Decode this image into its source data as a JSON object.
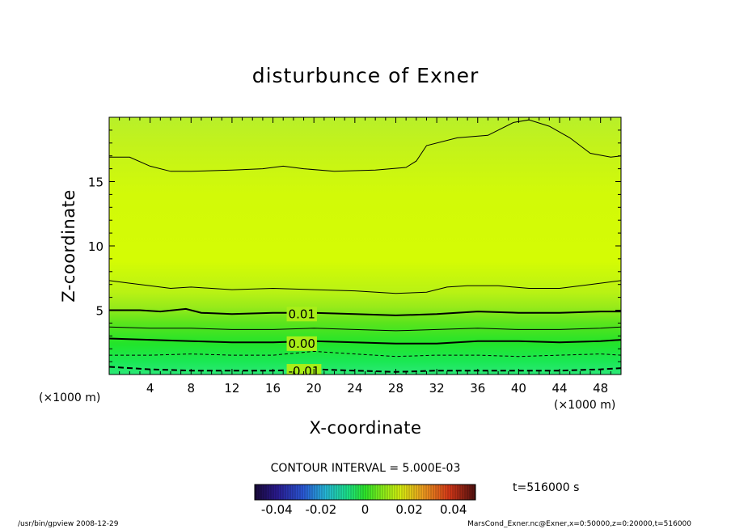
{
  "chart_data": {
    "type": "heatmap",
    "title": "disturbunce of Exner",
    "xlabel": "X-coordinate",
    "ylabel": "Z-coordinate",
    "x_unit": "(×1000 m)",
    "y_unit": "(×1000 m)",
    "xlim": [
      0,
      50
    ],
    "ylim": [
      0,
      20
    ],
    "x_ticks": [
      "4",
      "8",
      "12",
      "16",
      "20",
      "24",
      "28",
      "32",
      "36",
      "40",
      "44",
      "48"
    ],
    "x_tick_values": [
      4,
      8,
      12,
      16,
      20,
      24,
      28,
      32,
      36,
      40,
      44,
      48
    ],
    "y_ticks": [
      "5",
      "10",
      "15"
    ],
    "y_tick_values": [
      5,
      10,
      15
    ],
    "contour_interval_text": "CONTOUR INTERVAL = 5.000E-03",
    "contour_labels": [
      {
        "text": "0.01",
        "x": 17.5,
        "z": 4.7
      },
      {
        "text": "0.00",
        "x": 17.5,
        "z": 2.4
      },
      {
        "text": "-0.01",
        "x": 17.5,
        "z": 0.25
      }
    ],
    "contours": [
      {
        "name": "top-contour",
        "style": "thin",
        "points": [
          [
            0,
            16.9
          ],
          [
            2,
            16.9
          ],
          [
            4,
            16.2
          ],
          [
            6,
            15.8
          ],
          [
            8,
            15.8
          ],
          [
            12,
            15.9
          ],
          [
            15,
            16.0
          ],
          [
            17,
            16.2
          ],
          [
            19,
            16.0
          ],
          [
            22,
            15.8
          ],
          [
            26,
            15.9
          ],
          [
            29,
            16.1
          ],
          [
            30,
            16.6
          ],
          [
            31,
            17.8
          ],
          [
            34,
            18.4
          ],
          [
            37,
            18.6
          ],
          [
            39.5,
            19.6
          ],
          [
            41,
            19.8
          ],
          [
            43,
            19.3
          ],
          [
            45,
            18.4
          ],
          [
            47,
            17.2
          ],
          [
            49,
            16.9
          ],
          [
            50,
            17.0
          ]
        ]
      },
      {
        "name": "upper-mid-contour",
        "style": "thin",
        "points": [
          [
            0,
            7.3
          ],
          [
            2,
            7.1
          ],
          [
            4,
            6.9
          ],
          [
            6,
            6.7
          ],
          [
            8,
            6.8
          ],
          [
            12,
            6.6
          ],
          [
            16,
            6.7
          ],
          [
            20,
            6.6
          ],
          [
            24,
            6.5
          ],
          [
            28,
            6.3
          ],
          [
            31,
            6.4
          ],
          [
            33,
            6.8
          ],
          [
            35,
            6.9
          ],
          [
            38,
            6.9
          ],
          [
            41,
            6.7
          ],
          [
            44,
            6.7
          ],
          [
            47,
            7.0
          ],
          [
            50,
            7.3
          ]
        ]
      },
      {
        "name": "contour-0.01",
        "style": "thick",
        "points": [
          [
            0,
            5.0
          ],
          [
            3,
            5.0
          ],
          [
            5,
            4.9
          ],
          [
            7.5,
            5.1
          ],
          [
            9,
            4.8
          ],
          [
            12,
            4.7
          ],
          [
            16,
            4.8
          ],
          [
            20,
            4.8
          ],
          [
            24,
            4.7
          ],
          [
            28,
            4.6
          ],
          [
            32,
            4.7
          ],
          [
            36,
            4.9
          ],
          [
            40,
            4.8
          ],
          [
            44,
            4.8
          ],
          [
            48,
            4.9
          ],
          [
            50,
            4.9
          ]
        ]
      },
      {
        "name": "contour-0.005",
        "style": "thin",
        "points": [
          [
            0,
            3.7
          ],
          [
            4,
            3.6
          ],
          [
            8,
            3.6
          ],
          [
            12,
            3.5
          ],
          [
            16,
            3.5
          ],
          [
            20,
            3.6
          ],
          [
            24,
            3.5
          ],
          [
            28,
            3.4
          ],
          [
            32,
            3.5
          ],
          [
            36,
            3.6
          ],
          [
            40,
            3.5
          ],
          [
            44,
            3.5
          ],
          [
            48,
            3.6
          ],
          [
            50,
            3.7
          ]
        ]
      },
      {
        "name": "contour-0.00",
        "style": "thick",
        "points": [
          [
            0,
            2.8
          ],
          [
            4,
            2.7
          ],
          [
            8,
            2.6
          ],
          [
            12,
            2.5
          ],
          [
            16,
            2.5
          ],
          [
            20,
            2.6
          ],
          [
            24,
            2.5
          ],
          [
            28,
            2.4
          ],
          [
            32,
            2.4
          ],
          [
            36,
            2.6
          ],
          [
            40,
            2.6
          ],
          [
            44,
            2.5
          ],
          [
            48,
            2.6
          ],
          [
            50,
            2.7
          ]
        ]
      },
      {
        "name": "contour-minus-0.005",
        "style": "dashed",
        "points": [
          [
            0,
            1.5
          ],
          [
            4,
            1.5
          ],
          [
            8,
            1.6
          ],
          [
            12,
            1.5
          ],
          [
            16,
            1.5
          ],
          [
            20,
            1.8
          ],
          [
            24,
            1.6
          ],
          [
            28,
            1.4
          ],
          [
            32,
            1.5
          ],
          [
            36,
            1.5
          ],
          [
            40,
            1.4
          ],
          [
            44,
            1.5
          ],
          [
            48,
            1.6
          ],
          [
            50,
            1.5
          ]
        ]
      },
      {
        "name": "contour-minus-0.01",
        "style": "thick-dashed",
        "points": [
          [
            0,
            0.6
          ],
          [
            4,
            0.4
          ],
          [
            8,
            0.3
          ],
          [
            12,
            0.3
          ],
          [
            16,
            0.3
          ],
          [
            20,
            0.4
          ],
          [
            24,
            0.3
          ],
          [
            28,
            0.2
          ],
          [
            32,
            0.3
          ],
          [
            36,
            0.3
          ],
          [
            40,
            0.3
          ],
          [
            44,
            0.3
          ],
          [
            48,
            0.4
          ],
          [
            50,
            0.5
          ]
        ]
      }
    ],
    "colorbar": {
      "min": -0.05,
      "max": 0.05,
      "tick_labels": [
        "-0.04",
        "-0.02",
        "0",
        "0.02",
        "0.04"
      ],
      "tick_values": [
        -0.04,
        -0.02,
        0,
        0.02,
        0.04
      ]
    },
    "time_text": "t=516000 s",
    "footer_left": "/usr/bin/gpview  2008-12-29",
    "footer_right": "MarsCond_Exner.nc@Exner,x=0:50000,z=0:20000,t=516000"
  }
}
